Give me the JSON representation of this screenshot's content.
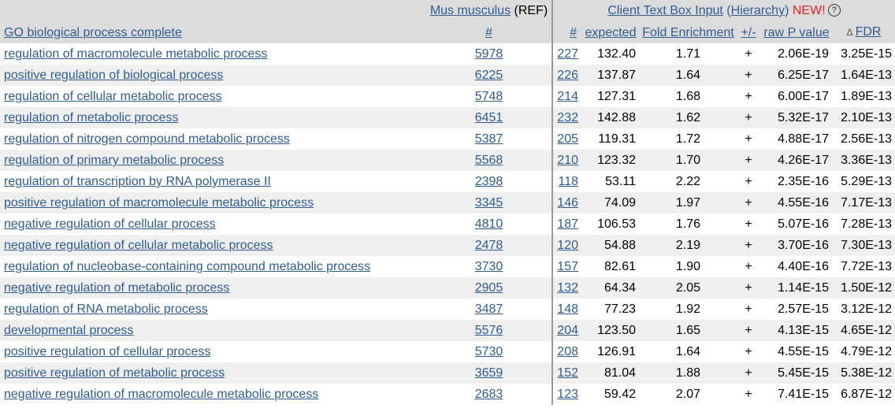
{
  "header": {
    "ref_species": "Mus musculus",
    "ref_suffix": "(REF)",
    "client_input": "Client Text Box Input",
    "hierarchy_open": "(",
    "hierarchy_label": "Hierarchy",
    "hierarchy_close": ")",
    "new_label": "NEW!",
    "help_glyph": "?"
  },
  "columns": {
    "term": "GO biological process complete",
    "ref_count": "#",
    "client_count": "#",
    "expected": "expected",
    "fold": "Fold Enrichment",
    "sign": "+/-",
    "raw_p": "raw P value",
    "fdr_marker": "Δ",
    "fdr": "FDR"
  },
  "rows": [
    {
      "term": "regulation of macromolecule metabolic process",
      "ref": "5978",
      "count": "227",
      "expected": "132.40",
      "fold": "1.71",
      "sign": "+",
      "raw_p": "2.06E-19",
      "fdr": "3.25E-15"
    },
    {
      "term": "positive regulation of biological process",
      "ref": "6225",
      "count": "226",
      "expected": "137.87",
      "fold": "1.64",
      "sign": "+",
      "raw_p": "6.25E-17",
      "fdr": "1.64E-13"
    },
    {
      "term": "regulation of cellular metabolic process",
      "ref": "5748",
      "count": "214",
      "expected": "127.31",
      "fold": "1.68",
      "sign": "+",
      "raw_p": "6.00E-17",
      "fdr": "1.89E-13"
    },
    {
      "term": "regulation of metabolic process",
      "ref": "6451",
      "count": "232",
      "expected": "142.88",
      "fold": "1.62",
      "sign": "+",
      "raw_p": "5.32E-17",
      "fdr": "2.10E-13"
    },
    {
      "term": "regulation of nitrogen compound metabolic process",
      "ref": "5387",
      "count": "205",
      "expected": "119.31",
      "fold": "1.72",
      "sign": "+",
      "raw_p": "4.88E-17",
      "fdr": "2.56E-13"
    },
    {
      "term": "regulation of primary metabolic process",
      "ref": "5568",
      "count": "210",
      "expected": "123.32",
      "fold": "1.70",
      "sign": "+",
      "raw_p": "4.26E-17",
      "fdr": "3.36E-13"
    },
    {
      "term": "regulation of transcription by RNA polymerase II",
      "ref": "2398",
      "count": "118",
      "expected": "53.11",
      "fold": "2.22",
      "sign": "+",
      "raw_p": "2.35E-16",
      "fdr": "5.29E-13"
    },
    {
      "term": "positive regulation of macromolecule metabolic process",
      "ref": "3345",
      "count": "146",
      "expected": "74.09",
      "fold": "1.97",
      "sign": "+",
      "raw_p": "4.55E-16",
      "fdr": "7.17E-13"
    },
    {
      "term": "negative regulation of cellular process",
      "ref": "4810",
      "count": "187",
      "expected": "106.53",
      "fold": "1.76",
      "sign": "+",
      "raw_p": "5.07E-16",
      "fdr": "7.28E-13"
    },
    {
      "term": "negative regulation of cellular metabolic process",
      "ref": "2478",
      "count": "120",
      "expected": "54.88",
      "fold": "2.19",
      "sign": "+",
      "raw_p": "3.70E-16",
      "fdr": "7.30E-13"
    },
    {
      "term": "regulation of nucleobase-containing compound metabolic process",
      "ref": "3730",
      "count": "157",
      "expected": "82.61",
      "fold": "1.90",
      "sign": "+",
      "raw_p": "4.40E-16",
      "fdr": "7.72E-13"
    },
    {
      "term": "negative regulation of metabolic process",
      "ref": "2905",
      "count": "132",
      "expected": "64.34",
      "fold": "2.05",
      "sign": "+",
      "raw_p": "1.14E-15",
      "fdr": "1.50E-12"
    },
    {
      "term": "regulation of RNA metabolic process",
      "ref": "3487",
      "count": "148",
      "expected": "77.23",
      "fold": "1.92",
      "sign": "+",
      "raw_p": "2.57E-15",
      "fdr": "3.12E-12"
    },
    {
      "term": "developmental process",
      "ref": "5576",
      "count": "204",
      "expected": "123.50",
      "fold": "1.65",
      "sign": "+",
      "raw_p": "4.13E-15",
      "fdr": "4.65E-12"
    },
    {
      "term": "positive regulation of cellular process",
      "ref": "5730",
      "count": "208",
      "expected": "126.91",
      "fold": "1.64",
      "sign": "+",
      "raw_p": "4.55E-15",
      "fdr": "4.79E-12"
    },
    {
      "term": "positive regulation of metabolic process",
      "ref": "3659",
      "count": "152",
      "expected": "81.04",
      "fold": "1.88",
      "sign": "+",
      "raw_p": "5.45E-15",
      "fdr": "5.38E-12"
    },
    {
      "term": "negative regulation of macromolecule metabolic process",
      "ref": "2683",
      "count": "123",
      "expected": "59.42",
      "fold": "2.07",
      "sign": "+",
      "raw_p": "7.41E-15",
      "fdr": "6.87E-12"
    }
  ]
}
